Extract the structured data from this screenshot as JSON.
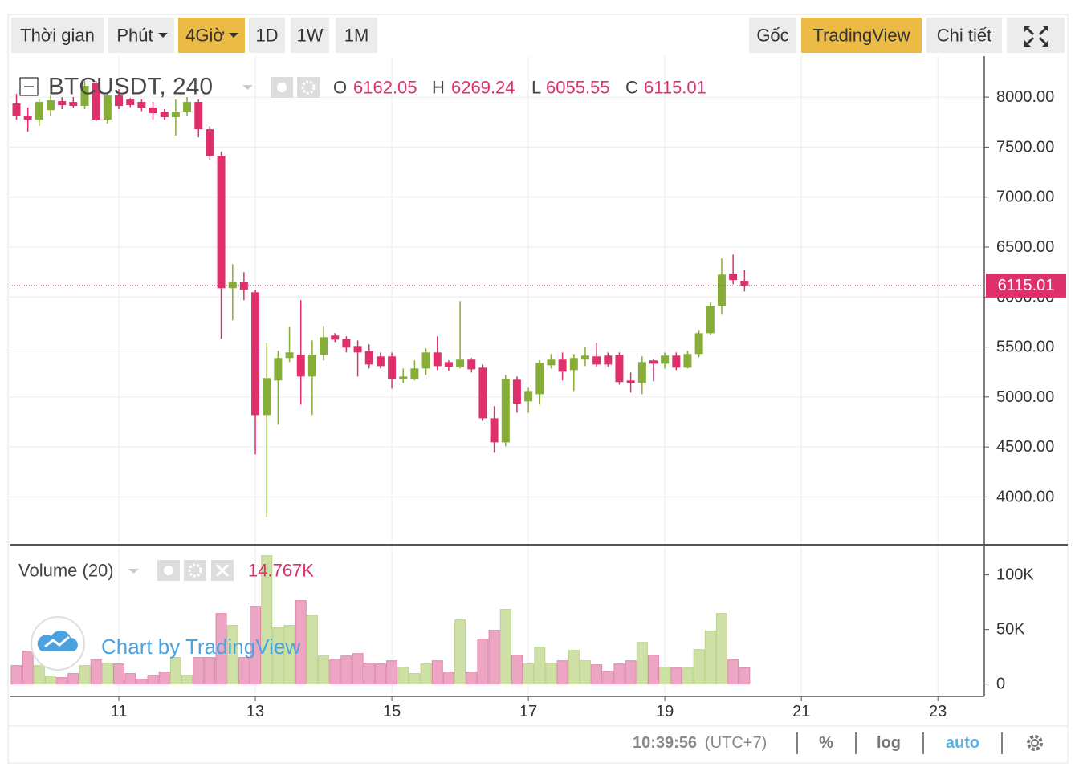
{
  "toolbar": {
    "left": [
      {
        "label": "Thời gian"
      },
      {
        "label": "Phút",
        "dropdown": true
      },
      {
        "label": "4Giờ",
        "dropdown": true,
        "active": true
      },
      {
        "label": "1D"
      },
      {
        "label": "1W"
      },
      {
        "label": "1M"
      }
    ],
    "right": [
      {
        "label": "Gốc"
      },
      {
        "label": "TradingView",
        "active": true
      },
      {
        "label": "Chi tiết"
      }
    ]
  },
  "chart_data": {
    "type": "candlestick",
    "symbol": "BTCUSDT, 240",
    "legend_letters": [
      "O",
      "H",
      "L",
      "C"
    ],
    "watermark": "Chart by TradingView",
    "up_color": "#86ad37",
    "down_color": "#df2f6c",
    "volume_up_color": "#cfe0a7",
    "volume_down_color": "#eda5c4",
    "x": [
      9.5,
      9.667,
      9.833,
      10,
      10.167,
      10.333,
      10.5,
      10.667,
      10.833,
      11,
      11.167,
      11.333,
      11.5,
      11.667,
      11.833,
      12,
      12.167,
      12.333,
      12.5,
      12.667,
      12.833,
      13,
      13.167,
      13.333,
      13.5,
      13.667,
      13.833,
      14,
      14.167,
      14.333,
      14.5,
      14.667,
      14.833,
      15,
      15.167,
      15.333,
      15.5,
      15.667,
      15.833,
      16,
      16.167,
      16.333,
      16.5,
      16.667,
      16.833,
      17,
      17.167,
      17.333,
      17.5,
      17.667,
      17.833,
      18,
      18.167,
      18.333,
      18.5,
      18.667,
      18.833,
      19,
      19.167,
      19.333,
      19.5,
      19.667,
      19.833,
      20,
      20.167
    ],
    "open": [
      7936,
      7815,
      7775,
      7871,
      7960,
      7952,
      7912,
      8137,
      7775,
      8016,
      7976,
      7952,
      7896,
      7856,
      7800,
      7856,
      7952,
      7679,
      7414,
      6088,
      6153,
      6048,
      4819,
      5165,
      5390,
      5422,
      5205,
      5422,
      5615,
      5582,
      5510,
      5462,
      5406,
      5406,
      5181,
      5181,
      5285,
      5446,
      5349,
      5301,
      5374,
      5293,
      4787,
      4546,
      5173,
      4956,
      5028,
      5317,
      5374,
      5269,
      5374,
      5406,
      5414,
      5422,
      5165,
      5141,
      5366,
      5333,
      5414,
      5293,
      5430,
      5638,
      5912,
      6233,
      6162.05
    ],
    "high": [
      8032,
      7896,
      7976,
      8016,
      8000,
      8000,
      8160,
      8160,
      8050,
      8080,
      7990,
      7976,
      7952,
      7880,
      7976,
      8000,
      7976,
      7711,
      7454,
      6329,
      6249,
      6072,
      5542,
      5462,
      5703,
      5968,
      5566,
      5711,
      5640,
      5607,
      5566,
      5526,
      5446,
      5446,
      5285,
      5366,
      5486,
      5607,
      5366,
      5960,
      5390,
      5325,
      4908,
      5221,
      5205,
      5092,
      5366,
      5430,
      5446,
      5430,
      5502,
      5542,
      5446,
      5446,
      5245,
      5406,
      5374,
      5446,
      5446,
      5462,
      5671,
      5944,
      6386,
      6425,
      6269.24
    ],
    "low": [
      7775,
      7655,
      7711,
      7815,
      7880,
      7895,
      7880,
      7760,
      7735,
      7880,
      7900,
      7860,
      7775,
      7775,
      7615,
      7815,
      7598,
      7374,
      5582,
      5767,
      5968,
      4426,
      3799,
      4723,
      5350,
      4924,
      4819,
      5366,
      5550,
      5446,
      5205,
      5285,
      5285,
      5084,
      5141,
      5165,
      5221,
      5269,
      5261,
      5285,
      5245,
      4763,
      4442,
      4506,
      4843,
      4843,
      4924,
      5285,
      5165,
      5060,
      5309,
      5301,
      5301,
      5124,
      5044,
      5028,
      5157,
      5285,
      5269,
      5285,
      5398,
      5622,
      5823,
      6129,
      6055.55
    ],
    "close": [
      7815,
      7775,
      7952,
      7968,
      7920,
      7912,
      8112,
      7775,
      8016,
      7912,
      7920,
      7896,
      7840,
      7800,
      7856,
      7952,
      7679,
      7414,
      6088,
      6153,
      6072,
      4819,
      5189,
      5390,
      5446,
      5205,
      5422,
      5598,
      5574,
      5494,
      5446,
      5325,
      5309,
      5181,
      5205,
      5285,
      5446,
      5309,
      5301,
      5374,
      5277,
      4787,
      4546,
      5181,
      4932,
      5060,
      5341,
      5374,
      5253,
      5390,
      5414,
      5325,
      5325,
      5149,
      5141,
      5349,
      5333,
      5414,
      5293,
      5430,
      5638,
      5912,
      6225,
      6169,
      6115.01
    ],
    "volume_title": "Volume (20)",
    "volume": [
      16900,
      30100,
      16900,
      7400,
      5900,
      9600,
      16900,
      22100,
      19100,
      18400,
      9600,
      4400,
      8100,
      11000,
      24300,
      8100,
      24300,
      24300,
      64700,
      53700,
      24300,
      71300,
      117600,
      51500,
      53700,
      76500,
      63200,
      25700,
      22800,
      25700,
      27900,
      19100,
      18400,
      21300,
      15400,
      9600,
      18400,
      21300,
      11000,
      58800,
      11000,
      41200,
      49300,
      68400,
      26500,
      18400,
      33800,
      19100,
      21300,
      30900,
      21300,
      17600,
      11800,
      18400,
      21300,
      38200,
      26500,
      15400,
      14700,
      14700,
      31600,
      48500,
      64700,
      22100,
      14767
    ],
    "volume_last_label": "14.767K",
    "xlim": [
      9.4,
      23.68
    ],
    "xticks": [
      11,
      13,
      15,
      17,
      19,
      21,
      23
    ],
    "ylim": [
      3530,
      8410
    ],
    "yticks": [
      {
        "value": 4000,
        "label": "4000.00"
      },
      {
        "value": 4500,
        "label": "4500.00"
      },
      {
        "value": 5000,
        "label": "5000.00"
      },
      {
        "value": 5500,
        "label": "5500.00"
      },
      {
        "value": 6000,
        "label": "6000.00"
      },
      {
        "value": 6500,
        "label": "6500.00"
      },
      {
        "value": 7000,
        "label": "7000.00"
      },
      {
        "value": 7500,
        "label": "7500.00"
      },
      {
        "value": 8000,
        "label": "8000.00"
      }
    ],
    "volume_ylim": [
      -9800,
      125500
    ],
    "volume_yticks": [
      {
        "value": 0,
        "label": "0"
      },
      {
        "value": 50000,
        "label": "50K"
      },
      {
        "value": 100000,
        "label": "100K"
      }
    ],
    "grid": true
  },
  "status_bar": {
    "time": "10:39:56",
    "timezone": "(UTC+7)",
    "percent": "%",
    "log": "log",
    "auto": "auto"
  }
}
